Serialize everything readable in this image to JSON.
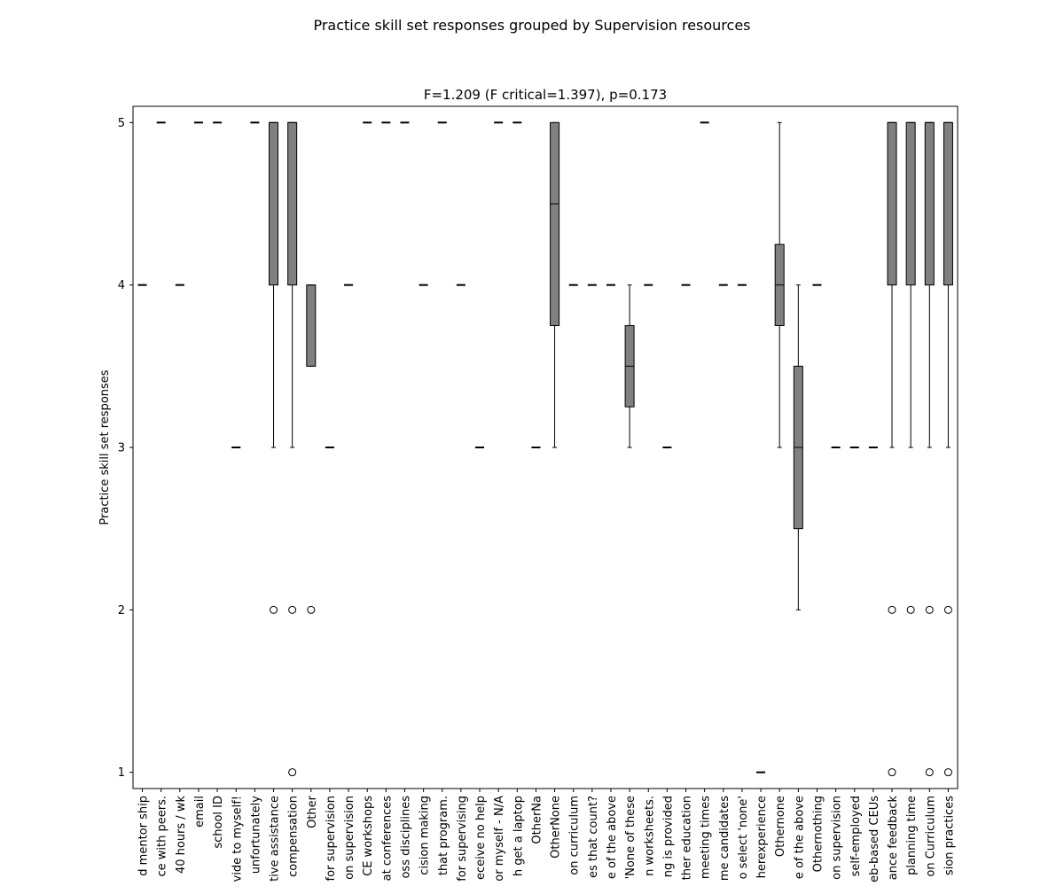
{
  "chart_data": {
    "type": "boxplot",
    "title": "Practice skill set responses grouped by Supervision resources",
    "subtitle": "F=1.209 (F critical=1.397), p=0.173",
    "ylabel": "Practice skill set responses",
    "box_color": "#808080",
    "ylim": [
      0.9,
      5.1
    ],
    "yticks": [
      1,
      2,
      3,
      4,
      5
    ],
    "categories": [
      "d mentor ship",
      "ce with peers.",
      "40 hours / wk",
      "email",
      "school ID",
      "vide to myself!",
      "unfortunately",
      "tive assistance",
      "compensation",
      "Other",
      "for supervision",
      "on supervision",
      "CE workshops",
      "at conferences",
      "oss disciplines",
      "cision making",
      "that program.",
      "for supervising",
      "eceive no help",
      "or myself - N/A",
      "h get a laptop",
      "OtherNa",
      "OtherNone",
      "on curriculum",
      "es that count?",
      "e of the above",
      "'None of these",
      "n worksheets.",
      "ng is provided",
      "ther education",
      "meeting times",
      "me candidates",
      "o select 'none'",
      "herexperience",
      "Othernone",
      "e of the above",
      "Othernothing",
      "on supervision",
      "self-employed",
      "eb-based CEUs",
      "ance feedback",
      "planning time",
      "on Curriculum",
      "sion practices"
    ],
    "boxes": [
      {
        "whislo": 4,
        "q1": 4,
        "med": 4,
        "q3": 4,
        "whishi": 4,
        "fliers": []
      },
      {
        "whislo": 5,
        "q1": 5,
        "med": 5,
        "q3": 5,
        "whishi": 5,
        "fliers": []
      },
      {
        "whislo": 4,
        "q1": 4,
        "med": 4,
        "q3": 4,
        "whishi": 4,
        "fliers": []
      },
      {
        "whislo": 5,
        "q1": 5,
        "med": 5,
        "q3": 5,
        "whishi": 5,
        "fliers": []
      },
      {
        "whislo": 5,
        "q1": 5,
        "med": 5,
        "q3": 5,
        "whishi": 5,
        "fliers": []
      },
      {
        "whislo": 3,
        "q1": 3,
        "med": 3,
        "q3": 3,
        "whishi": 3,
        "fliers": []
      },
      {
        "whislo": 5,
        "q1": 5,
        "med": 5,
        "q3": 5,
        "whishi": 5,
        "fliers": []
      },
      {
        "whislo": 3,
        "q1": 4,
        "med": 5,
        "q3": 5,
        "whishi": 5,
        "fliers": [
          2
        ]
      },
      {
        "whislo": 3,
        "q1": 4,
        "med": 5,
        "q3": 5,
        "whishi": 5,
        "fliers": [
          2,
          1
        ]
      },
      {
        "whislo": 3.5,
        "q1": 3.5,
        "med": 4,
        "q3": 4,
        "whishi": 4,
        "fliers": [
          2
        ]
      },
      {
        "whislo": 3,
        "q1": 3,
        "med": 3,
        "q3": 3,
        "whishi": 3,
        "fliers": []
      },
      {
        "whislo": 4,
        "q1": 4,
        "med": 4,
        "q3": 4,
        "whishi": 4,
        "fliers": []
      },
      {
        "whislo": 5,
        "q1": 5,
        "med": 5,
        "q3": 5,
        "whishi": 5,
        "fliers": []
      },
      {
        "whislo": 5,
        "q1": 5,
        "med": 5,
        "q3": 5,
        "whishi": 5,
        "fliers": []
      },
      {
        "whislo": 5,
        "q1": 5,
        "med": 5,
        "q3": 5,
        "whishi": 5,
        "fliers": []
      },
      {
        "whislo": 4,
        "q1": 4,
        "med": 4,
        "q3": 4,
        "whishi": 4,
        "fliers": []
      },
      {
        "whislo": 5,
        "q1": 5,
        "med": 5,
        "q3": 5,
        "whishi": 5,
        "fliers": []
      },
      {
        "whislo": 4,
        "q1": 4,
        "med": 4,
        "q3": 4,
        "whishi": 4,
        "fliers": []
      },
      {
        "whislo": 3,
        "q1": 3,
        "med": 3,
        "q3": 3,
        "whishi": 3,
        "fliers": []
      },
      {
        "whislo": 5,
        "q1": 5,
        "med": 5,
        "q3": 5,
        "whishi": 5,
        "fliers": []
      },
      {
        "whislo": 5,
        "q1": 5,
        "med": 5,
        "q3": 5,
        "whishi": 5,
        "fliers": []
      },
      {
        "whislo": 3,
        "q1": 3,
        "med": 3,
        "q3": 3,
        "whishi": 3,
        "fliers": []
      },
      {
        "whislo": 3,
        "q1": 3.75,
        "med": 4.5,
        "q3": 5,
        "whishi": 5,
        "fliers": []
      },
      {
        "whislo": 4,
        "q1": 4,
        "med": 4,
        "q3": 4,
        "whishi": 4,
        "fliers": []
      },
      {
        "whislo": 4,
        "q1": 4,
        "med": 4,
        "q3": 4,
        "whishi": 4,
        "fliers": []
      },
      {
        "whislo": 4,
        "q1": 4,
        "med": 4,
        "q3": 4,
        "whishi": 4,
        "fliers": []
      },
      {
        "whislo": 3,
        "q1": 3.25,
        "med": 3.5,
        "q3": 3.75,
        "whishi": 4,
        "fliers": []
      },
      {
        "whislo": 4,
        "q1": 4,
        "med": 4,
        "q3": 4,
        "whishi": 4,
        "fliers": []
      },
      {
        "whislo": 3,
        "q1": 3,
        "med": 3,
        "q3": 3,
        "whishi": 3,
        "fliers": []
      },
      {
        "whislo": 4,
        "q1": 4,
        "med": 4,
        "q3": 4,
        "whishi": 4,
        "fliers": []
      },
      {
        "whislo": 5,
        "q1": 5,
        "med": 5,
        "q3": 5,
        "whishi": 5,
        "fliers": []
      },
      {
        "whislo": 4,
        "q1": 4,
        "med": 4,
        "q3": 4,
        "whishi": 4,
        "fliers": []
      },
      {
        "whislo": 4,
        "q1": 4,
        "med": 4,
        "q3": 4,
        "whishi": 4,
        "fliers": []
      },
      {
        "whislo": 1,
        "q1": 1,
        "med": 1,
        "q3": 1,
        "whishi": 1,
        "fliers": []
      },
      {
        "whislo": 3,
        "q1": 3.75,
        "med": 4,
        "q3": 4.25,
        "whishi": 5,
        "fliers": []
      },
      {
        "whislo": 2,
        "q1": 2.5,
        "med": 3,
        "q3": 3.5,
        "whishi": 4,
        "fliers": []
      },
      {
        "whislo": 4,
        "q1": 4,
        "med": 4,
        "q3": 4,
        "whishi": 4,
        "fliers": []
      },
      {
        "whislo": 3,
        "q1": 3,
        "med": 3,
        "q3": 3,
        "whishi": 3,
        "fliers": []
      },
      {
        "whislo": 3,
        "q1": 3,
        "med": 3,
        "q3": 3,
        "whishi": 3,
        "fliers": []
      },
      {
        "whislo": 3,
        "q1": 3,
        "med": 3,
        "q3": 3,
        "whishi": 3,
        "fliers": []
      },
      {
        "whislo": 3,
        "q1": 4,
        "med": 5,
        "q3": 5,
        "whishi": 5,
        "fliers": [
          2,
          1
        ]
      },
      {
        "whislo": 3,
        "q1": 4,
        "med": 5,
        "q3": 5,
        "whishi": 5,
        "fliers": [
          2
        ]
      },
      {
        "whislo": 3,
        "q1": 4,
        "med": 5,
        "q3": 5,
        "whishi": 5,
        "fliers": [
          2,
          1
        ]
      },
      {
        "whislo": 3,
        "q1": 4,
        "med": 5,
        "q3": 5,
        "whishi": 5,
        "fliers": [
          2,
          1
        ]
      }
    ]
  }
}
